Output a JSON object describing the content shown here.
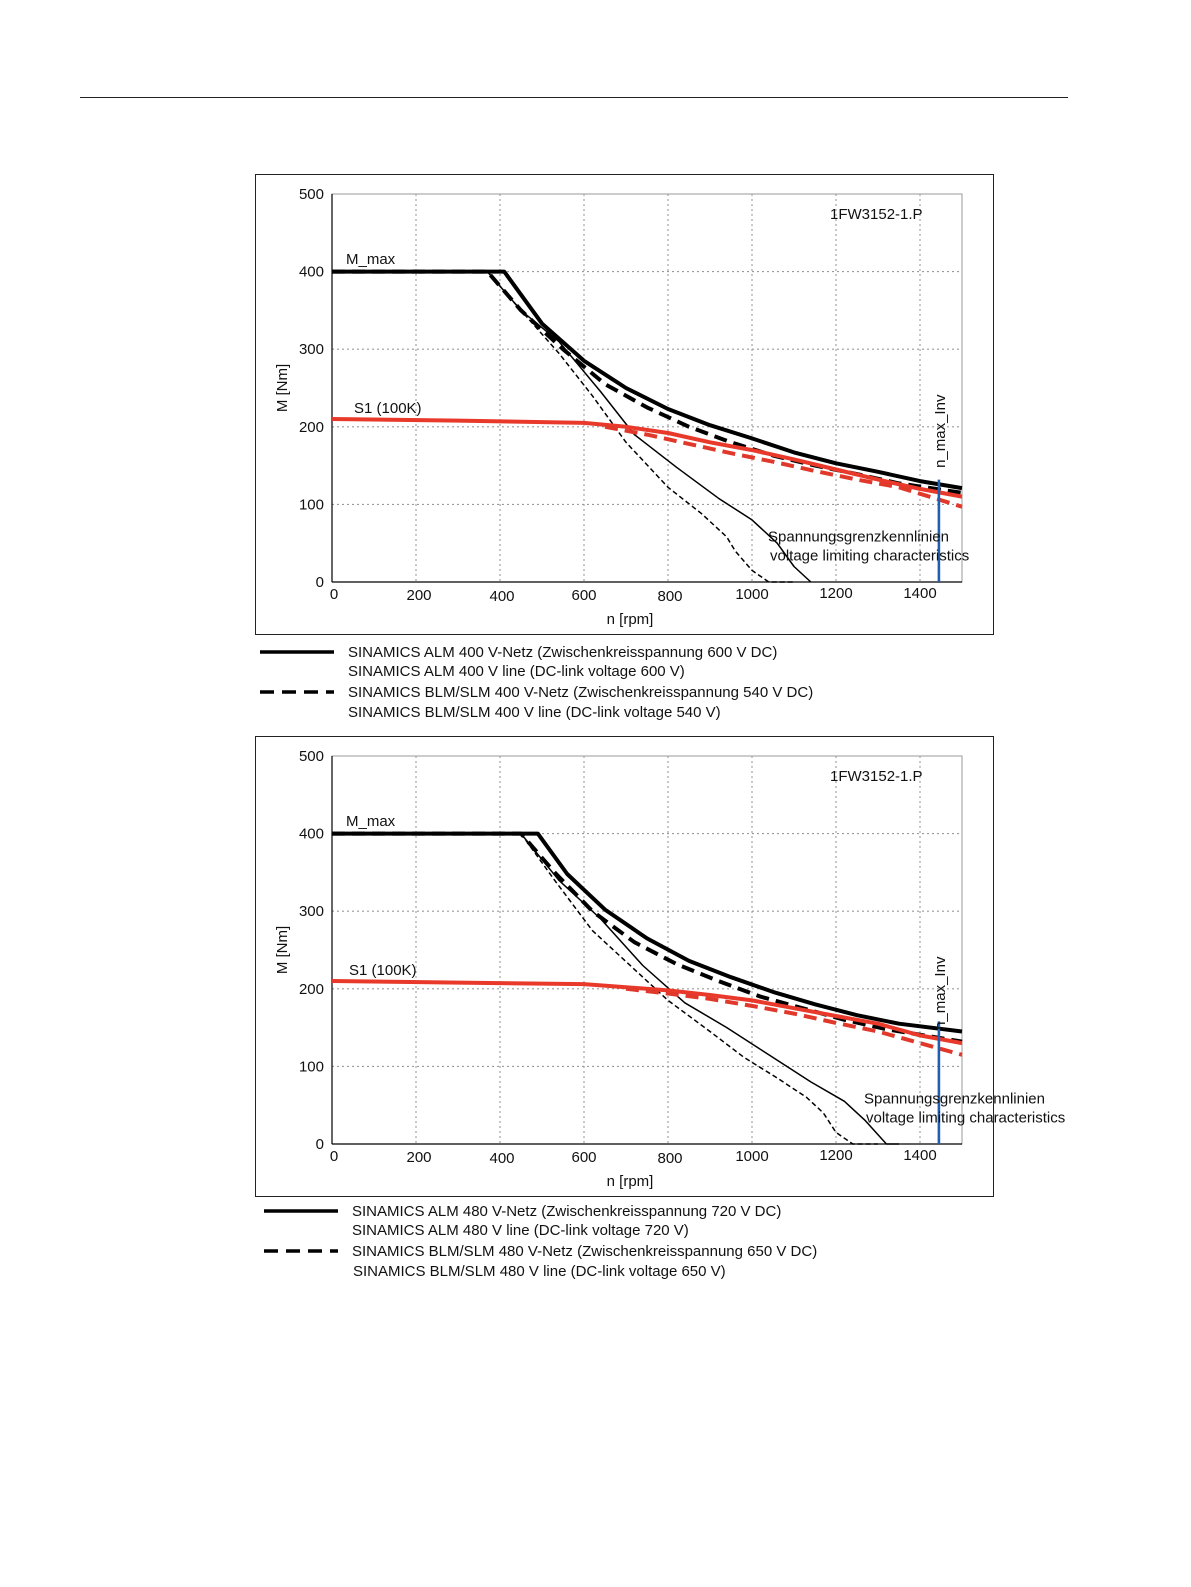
{
  "chart_data": [
    {
      "type": "line",
      "model": "1FW3152-1.P",
      "xlabel": "n [rpm]",
      "ylabel": "M [Nm]",
      "xlim": [
        0,
        1500
      ],
      "ylim": [
        0,
        500
      ],
      "x_ticks": [
        "0",
        "200",
        "400",
        "600",
        "800",
        "1000",
        "1200",
        "1400"
      ],
      "y_ticks": [
        "0",
        "100",
        "200",
        "300",
        "400",
        "500"
      ],
      "grid": true,
      "annotations": {
        "m_max": "M_max",
        "s1": "S1 (100K)",
        "vlimit_line1": "Spannungsgrenzkennlinien",
        "vlimit_line2": "voltage limiting characteristics",
        "n_max_inv": "n_max_Inv"
      },
      "n_max_inv_x": 1445,
      "series": [
        {
          "style": "solid-thick",
          "color": "#000000",
          "points": [
            [
              0,
              400
            ],
            [
              410,
              400
            ],
            [
              500,
              333
            ],
            [
              600,
              285
            ],
            [
              700,
              250
            ],
            [
              800,
              223
            ],
            [
              900,
              202
            ],
            [
              1000,
              185
            ],
            [
              1100,
              167
            ],
            [
              1200,
              153
            ],
            [
              1300,
              142
            ],
            [
              1400,
              130
            ],
            [
              1500,
              121
            ]
          ]
        },
        {
          "style": "dashed-thick",
          "color": "#000000",
          "points": [
            [
              0,
              400
            ],
            [
              370,
              400
            ],
            [
              450,
              350
            ],
            [
              550,
              300
            ],
            [
              650,
              255
            ],
            [
              750,
              225
            ],
            [
              850,
              200
            ],
            [
              950,
              180
            ],
            [
              1050,
              163
            ],
            [
              1150,
              150
            ],
            [
              1250,
              139
            ],
            [
              1350,
              127
            ],
            [
              1500,
              115
            ]
          ]
        },
        {
          "style": "solid-thin",
          "color": "#000000",
          "points": [
            [
              370,
              400
            ],
            [
              450,
              350
            ],
            [
              540,
              310
            ],
            [
              640,
              245
            ],
            [
              720,
              190
            ],
            [
              820,
              148
            ],
            [
              920,
              108
            ],
            [
              1000,
              80
            ],
            [
              1060,
              50
            ],
            [
              1100,
              20
            ],
            [
              1140,
              0
            ]
          ]
        },
        {
          "style": "dashed-thin",
          "color": "#000000",
          "points": [
            [
              370,
              400
            ],
            [
              450,
              350
            ],
            [
              540,
              295
            ],
            [
              620,
              240
            ],
            [
              700,
              180
            ],
            [
              800,
              122
            ],
            [
              880,
              88
            ],
            [
              940,
              58
            ],
            [
              960,
              40
            ],
            [
              1000,
              15
            ],
            [
              1040,
              0
            ],
            [
              1100,
              0
            ]
          ]
        },
        {
          "style": "solid-thick",
          "color": "#e8392b",
          "points": [
            [
              0,
              210
            ],
            [
              300,
              208
            ],
            [
              600,
              205
            ],
            [
              700,
              200
            ],
            [
              800,
              192
            ],
            [
              900,
              180
            ],
            [
              1000,
              170
            ],
            [
              1100,
              158
            ],
            [
              1200,
              145
            ],
            [
              1300,
              132
            ],
            [
              1400,
              120
            ],
            [
              1500,
              110
            ]
          ]
        },
        {
          "style": "dashed-thick",
          "color": "#e0392b",
          "points": [
            [
              650,
              200
            ],
            [
              750,
              190
            ],
            [
              850,
              178
            ],
            [
              950,
              166
            ],
            [
              1050,
              155
            ],
            [
              1150,
              143
            ],
            [
              1250,
              132
            ],
            [
              1350,
              122
            ],
            [
              1500,
              97
            ]
          ]
        }
      ],
      "legend": [
        {
          "style": "solid",
          "line1": "SINAMICS ALM  400 V-Netz (Zwischenkreisspannung 600 V DC)",
          "line2": "SINAMICS ALM  400 V line (DC-link voltage 600 V)"
        },
        {
          "style": "dashed",
          "line1": "SINAMICS BLM/SLM  400 V-Netz (Zwischenkreisspannung 540 V DC)",
          "line2": "SINAMICS BLM/SLM  400 V line (DC-link voltage 540 V)"
        }
      ]
    },
    {
      "type": "line",
      "model": "1FW3152-1.P",
      "xlabel": "n [rpm]",
      "ylabel": "M [Nm]",
      "xlim": [
        0,
        1500
      ],
      "ylim": [
        0,
        500
      ],
      "x_ticks": [
        "0",
        "200",
        "400",
        "600",
        "800",
        "1000",
        "1200",
        "1400"
      ],
      "y_ticks": [
        "0",
        "100",
        "200",
        "300",
        "400",
        "500"
      ],
      "grid": true,
      "annotations": {
        "m_max": "M_max",
        "s1": "S1 (100K)",
        "vlimit_line1": "Spannungsgrenzkennlinien",
        "vlimit_line2": "voltage limiting characteristics",
        "n_max_inv": "n_max_Inv"
      },
      "n_max_inv_x": 1445,
      "series": [
        {
          "style": "solid-thick",
          "color": "#000000",
          "points": [
            [
              0,
              400
            ],
            [
              490,
              400
            ],
            [
              560,
              348
            ],
            [
              650,
              302
            ],
            [
              750,
              265
            ],
            [
              850,
              236
            ],
            [
              950,
              215
            ],
            [
              1050,
              196
            ],
            [
              1150,
              180
            ],
            [
              1250,
              166
            ],
            [
              1350,
              155
            ],
            [
              1500,
              145
            ]
          ]
        },
        {
          "style": "dashed-thick",
          "color": "#000000",
          "points": [
            [
              0,
              400
            ],
            [
              450,
              400
            ],
            [
              530,
              350
            ],
            [
              620,
              300
            ],
            [
              720,
              260
            ],
            [
              820,
              232
            ],
            [
              920,
              210
            ],
            [
              1020,
              190
            ],
            [
              1120,
              175
            ],
            [
              1220,
              160
            ],
            [
              1320,
              148
            ],
            [
              1500,
              132
            ]
          ]
        },
        {
          "style": "solid-thin",
          "color": "#000000",
          "points": [
            [
              450,
              400
            ],
            [
              540,
              340
            ],
            [
              640,
              290
            ],
            [
              740,
              230
            ],
            [
              840,
              182
            ],
            [
              940,
              150
            ],
            [
              1040,
              115
            ],
            [
              1140,
              80
            ],
            [
              1220,
              55
            ],
            [
              1270,
              30
            ],
            [
              1320,
              0
            ],
            [
              1350,
              0
            ]
          ]
        },
        {
          "style": "dashed-thin",
          "color": "#000000",
          "points": [
            [
              450,
              400
            ],
            [
              530,
              340
            ],
            [
              620,
              275
            ],
            [
              700,
              235
            ],
            [
              800,
              185
            ],
            [
              900,
              145
            ],
            [
              980,
              112
            ],
            [
              1060,
              85
            ],
            [
              1130,
              60
            ],
            [
              1170,
              40
            ],
            [
              1200,
              15
            ],
            [
              1240,
              0
            ],
            [
              1300,
              0
            ]
          ]
        },
        {
          "style": "solid-thick",
          "color": "#e8392b",
          "points": [
            [
              0,
              210
            ],
            [
              300,
              208
            ],
            [
              600,
              206
            ],
            [
              700,
              202
            ],
            [
              800,
              198
            ],
            [
              900,
              192
            ],
            [
              1000,
              185
            ],
            [
              1100,
              175
            ],
            [
              1200,
              165
            ],
            [
              1300,
              155
            ],
            [
              1400,
              140
            ],
            [
              1500,
              130
            ]
          ]
        },
        {
          "style": "dashed-thick",
          "color": "#e0392b",
          "points": [
            [
              700,
              200
            ],
            [
              800,
              194
            ],
            [
              900,
              187
            ],
            [
              1000,
              178
            ],
            [
              1100,
              168
            ],
            [
              1200,
              156
            ],
            [
              1300,
              145
            ],
            [
              1400,
              130
            ],
            [
              1500,
              115
            ]
          ]
        }
      ],
      "legend": [
        {
          "style": "solid",
          "line1": "SINAMICS ALM  480 V-Netz (Zwischenkreisspannung 720 V DC)",
          "line2": "SINAMICS ALM  480 V line (DC-link voltage 720 V)"
        },
        {
          "style": "dashed",
          "line1": "SINAMICS BLM/SLM  480 V-Netz (Zwischenkreisspannung 650 V DC)",
          "line2": "SINAMICS BLM/SLM  480 V line (DC-link voltage 650 V)"
        }
      ]
    }
  ]
}
